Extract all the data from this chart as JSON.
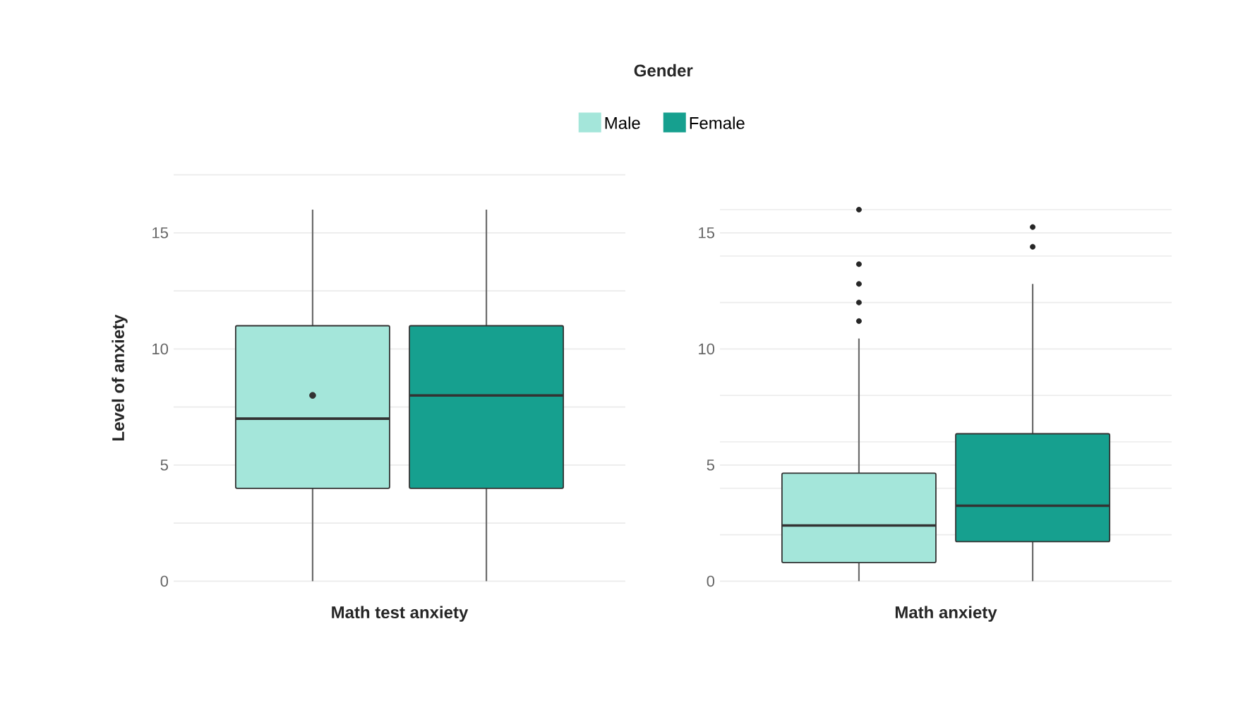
{
  "chart_data": [
    {
      "type": "box",
      "legend_title": "Gender",
      "legend": "top",
      "grid": "y",
      "xlabel": "Math test anxiety",
      "ylabel": "Level of anxiety",
      "categories": [
        null
      ],
      "ylim": [
        0,
        17.5
      ],
      "yticks": [
        0,
        {
          "value": 2.5,
          "label": null
        },
        5,
        {
          "value": 7.5,
          "label": null
        },
        10,
        {
          "value": 12.5,
          "label": null
        },
        15,
        {
          "value": 17.5,
          "label": null
        }
      ],
      "series": [
        {
          "name": "Male",
          "color": "#a4e6da",
          "boxes": [
            {
              "low": 0,
              "q1": 4,
              "median": 7,
              "q3": 11,
              "high": 16,
              "mean": 8
            }
          ]
        },
        {
          "name": "Female",
          "color": "#16a08f",
          "boxes": [
            {
              "low": 0,
              "q1": 4,
              "median": 8,
              "q3": 11,
              "high": 16
            }
          ]
        }
      ]
    },
    {
      "type": "box",
      "grid": "y",
      "xlabel": "Math anxiety",
      "categories": [
        null
      ],
      "ylim": [
        0,
        16
      ],
      "yticks": [
        0,
        {
          "value": 2,
          "label": null
        },
        {
          "value": 4,
          "label": null
        },
        5,
        {
          "value": 6,
          "label": null
        },
        {
          "value": 8,
          "label": null
        },
        10,
        {
          "value": 12,
          "label": null
        },
        {
          "value": 14,
          "label": null
        },
        15,
        {
          "value": 16,
          "label": null
        }
      ],
      "series": [
        {
          "color": "#a4e6da",
          "boxes": [
            {
              "low": 0,
              "q1": 0.8,
              "median": 2.4,
              "q3": 4.65,
              "high": 10.45,
              "outliers": [
                11.2,
                12.0,
                12.8,
                13.65,
                16.0
              ]
            }
          ]
        },
        {
          "color": "#16a08f",
          "boxes": [
            {
              "low": 0,
              "q1": 1.7,
              "median": 3.25,
              "q3": 6.35,
              "high": 12.8,
              "outliers": [
                14.4,
                15.25
              ]
            }
          ]
        }
      ]
    }
  ]
}
